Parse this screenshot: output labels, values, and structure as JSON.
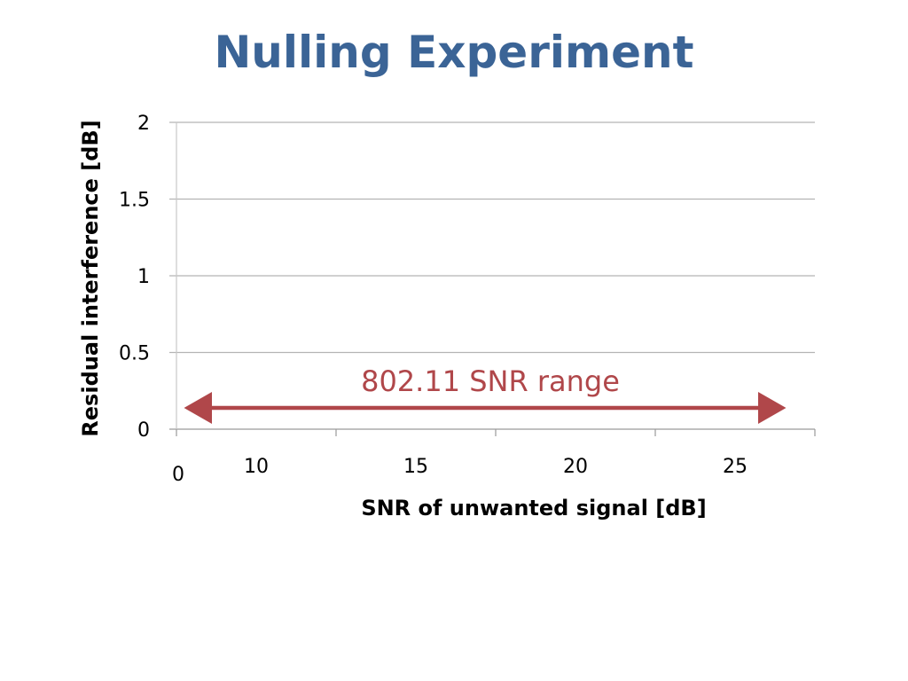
{
  "slide": {
    "title": "Nulling Experiment"
  },
  "chart_data": {
    "type": "line",
    "xlabel": "SNR of unwanted signal [dB]",
    "ylabel": "Residual interference [dB]",
    "ylim": [
      0,
      2
    ],
    "y_ticks": [
      "0",
      "0.5",
      "1",
      "1.5",
      "2"
    ],
    "x_tick_labels": [
      "0",
      "10",
      "15",
      "20",
      "25"
    ],
    "grid": true,
    "series": [],
    "annotation": {
      "text": "802.11 SNR range",
      "color": "#b0474a"
    }
  }
}
